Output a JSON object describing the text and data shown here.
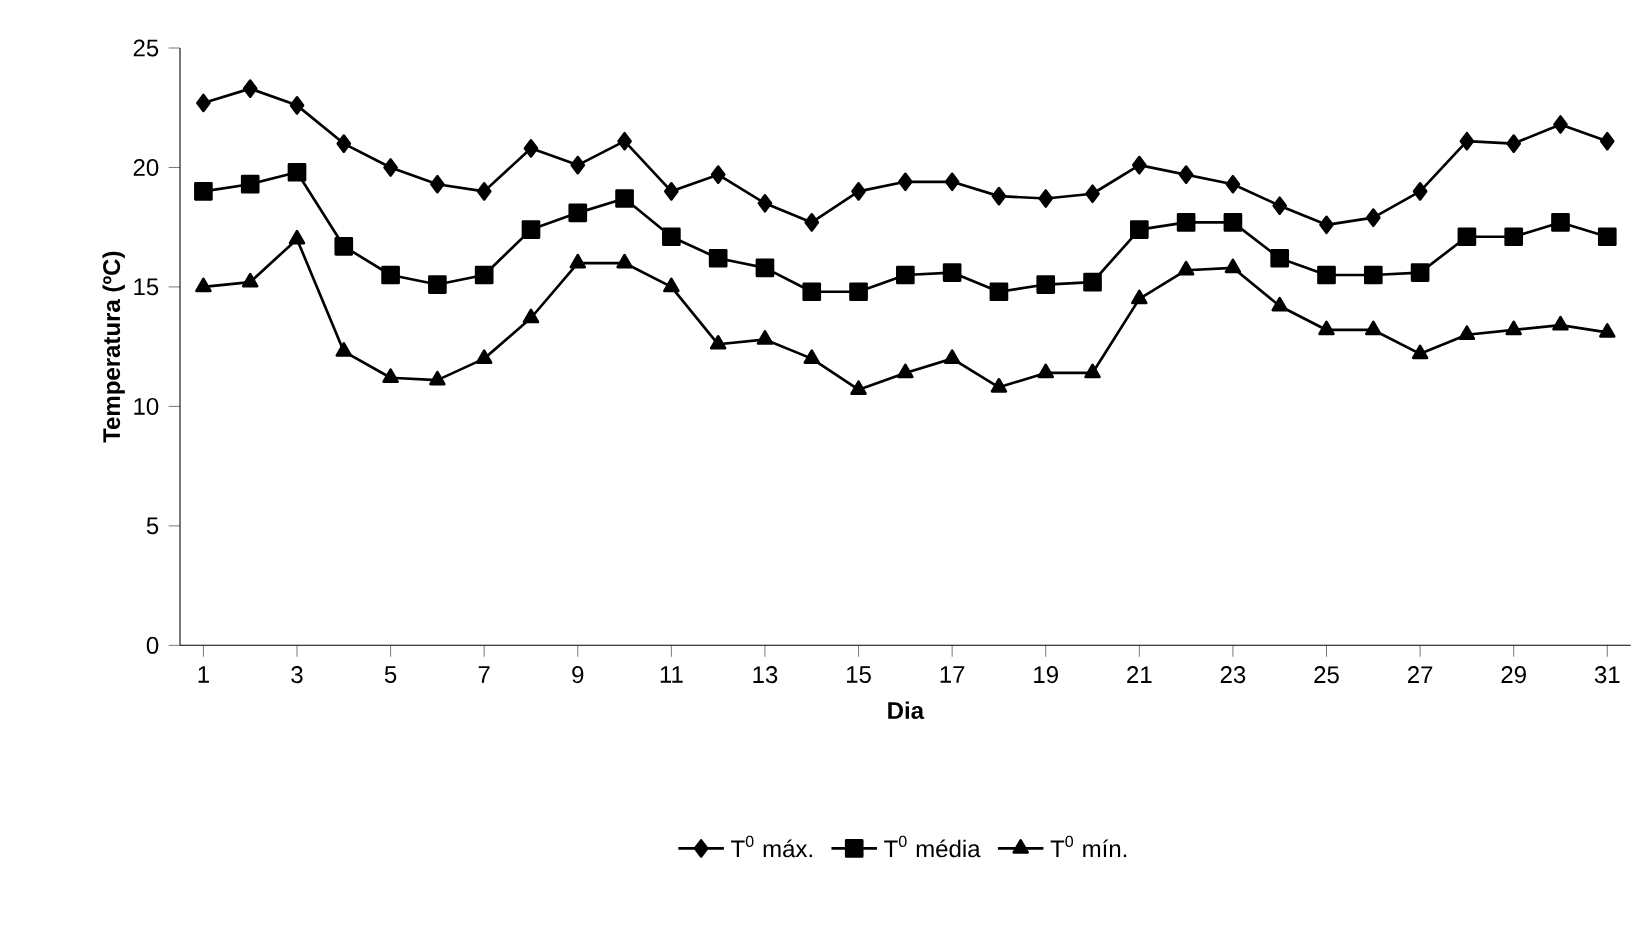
{
  "chart_data": {
    "type": "line",
    "xlabel": "Dia",
    "ylabel": "Temperatura (ºC)",
    "x": [
      1,
      2,
      3,
      4,
      5,
      6,
      7,
      8,
      9,
      10,
      11,
      12,
      13,
      14,
      15,
      16,
      17,
      18,
      19,
      20,
      21,
      22,
      23,
      24,
      25,
      26,
      27,
      28,
      29,
      30,
      31
    ],
    "xlim": [
      0.5,
      31.5
    ],
    "xticks": [
      1,
      3,
      5,
      7,
      9,
      11,
      13,
      15,
      17,
      19,
      21,
      23,
      25,
      27,
      29,
      31
    ],
    "ylim": [
      0,
      25
    ],
    "yticks": [
      0,
      5,
      10,
      15,
      20,
      25
    ],
    "grid": false,
    "legend": "bottom",
    "line_style": "solid",
    "series": [
      {
        "name": "T$^{0}$ máx.",
        "color": "#000000",
        "marker": "diamond",
        "values": [
          22.7,
          23.3,
          22.6,
          21.0,
          20.0,
          19.3,
          19.0,
          20.8,
          20.1,
          21.1,
          19.0,
          19.7,
          18.5,
          17.7,
          19.0,
          19.4,
          19.4,
          18.8,
          18.7,
          18.9,
          20.1,
          19.7,
          19.3,
          18.4,
          17.6,
          17.9,
          19.0,
          21.1,
          21.0,
          21.8,
          21.1
        ]
      },
      {
        "name": "T$^{0}$ média",
        "color": "#000000",
        "marker": "square",
        "values": [
          19.0,
          19.3,
          19.8,
          16.7,
          15.5,
          15.1,
          15.5,
          17.4,
          18.1,
          18.7,
          17.1,
          16.2,
          15.8,
          14.8,
          14.8,
          15.5,
          15.6,
          14.8,
          15.1,
          15.2,
          17.4,
          17.7,
          17.7,
          16.2,
          15.5,
          15.5,
          15.6,
          17.1,
          17.1,
          17.7,
          17.1
        ]
      },
      {
        "name": "T$^{0}$ mín.",
        "color": "#000000",
        "marker": "triangle",
        "values": [
          15.0,
          15.2,
          17.0,
          12.3,
          11.2,
          11.1,
          12.0,
          13.7,
          16.0,
          16.0,
          15.0,
          12.6,
          12.8,
          12.0,
          10.7,
          11.4,
          12.0,
          10.8,
          11.4,
          11.4,
          14.5,
          15.7,
          15.8,
          14.2,
          13.2,
          13.2,
          12.2,
          13.0,
          13.2,
          13.4,
          13.1
        ]
      }
    ]
  }
}
